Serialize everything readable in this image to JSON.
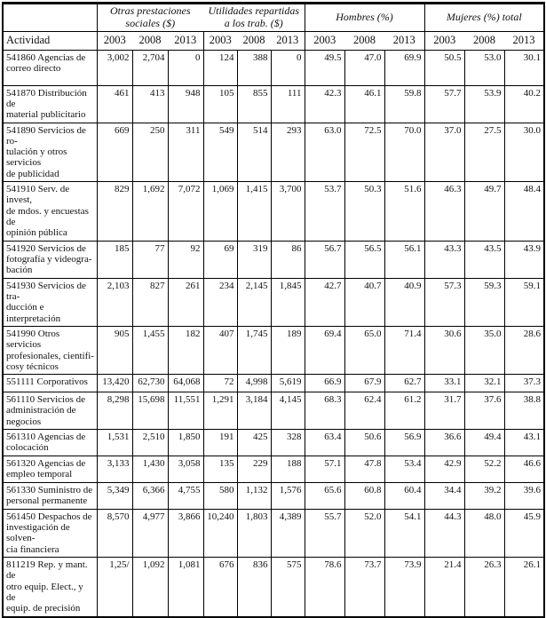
{
  "page": {
    "background_color": "#ffffff",
    "border_color": "#000000",
    "text_color": "#111111"
  },
  "table": {
    "activity_header": "Actividad",
    "column_groups": [
      {
        "label": "Otras prestaciones\nsociales ($)",
        "years": [
          "2003",
          "2008",
          "2013"
        ]
      },
      {
        "label": "Utilidades repartidas\na los trab. ($)",
        "years": [
          "2003",
          "2008",
          "2013"
        ]
      },
      {
        "label": "Hombres (%)",
        "years": [
          "2003",
          "2008",
          "2013"
        ]
      },
      {
        "label": "Mujeres (%) total",
        "years": [
          "2003",
          "2008",
          "2013"
        ]
      }
    ],
    "rows": [
      {
        "activity": "541860 Agencias de\ncorreo directo",
        "values": [
          "3,002",
          "2,704",
          "0",
          "124",
          "388",
          "0",
          "49.5",
          "47.0",
          "69.9",
          "50.5",
          "53.0",
          "30.1"
        ]
      },
      {
        "activity": "541870 Distribución de\nmaterial publicitario",
        "values": [
          "461",
          "413",
          "948",
          "105",
          "855",
          "111",
          "42.3",
          "46.1",
          "59.8",
          "57.7",
          "53.9",
          "40.2"
        ]
      },
      {
        "activity": "541890 Servicios de ro-\ntulación y otros servicios\nde publicidad",
        "values": [
          "669",
          "250",
          "311",
          "549",
          "514",
          "293",
          "63.0",
          "72.5",
          "70.0",
          "37.0",
          "27.5",
          "30.0"
        ]
      },
      {
        "activity": "541910 Serv. de invest,\nde mdos. y encuestas de\nopinión pública",
        "values": [
          "829",
          "1,692",
          "7,072",
          "1,069",
          "1,415",
          "3,700",
          "53.7",
          "50.3",
          "51.6",
          "46.3",
          "49.7",
          "48.4"
        ]
      },
      {
        "activity": "541920 Servicios de\nfotografía y videogra-\nbación",
        "values": [
          "185",
          "77",
          "92",
          "69",
          "319",
          "86",
          "56.7",
          "56.5",
          "56.1",
          "43.3",
          "43.5",
          "43.9"
        ]
      },
      {
        "activity": "541930 Servicios de tra-\nducción e interpretación",
        "values": [
          "2,103",
          "827",
          "261",
          "234",
          "2,145",
          "1,845",
          "42.7",
          "40.7",
          "40.9",
          "57.3",
          "59.3",
          "59.1"
        ]
      },
      {
        "activity": "541990 Otros servicios\nprofesionales, científi-\ncosy técnicos",
        "values": [
          "905",
          "1,455",
          "182",
          "407",
          "1,745",
          "189",
          "69.4",
          "65.0",
          "71.4",
          "30.6",
          "35.0",
          "28.6"
        ]
      },
      {
        "activity": "551111 Corporativos",
        "values": [
          "13,420",
          "62,730",
          "64,068",
          "72",
          "4,998",
          "5,619",
          "66.9",
          "67.9",
          "62.7",
          "33.1",
          "32.1",
          "37.3"
        ]
      },
      {
        "activity": "561110 Servicios de\nadministración de\nnegocios",
        "values": [
          "8,298",
          "15,698",
          "11,551",
          "1,291",
          "3,184",
          "4,145",
          "68.3",
          "62.4",
          "61.2",
          "31.7",
          "37.6",
          "38.8"
        ]
      },
      {
        "activity": "561310 Agencias de\ncolocación",
        "values": [
          "1,531",
          "2,510",
          "1,850",
          "191",
          "425",
          "328",
          "63.4",
          "50.6",
          "56.9",
          "36.6",
          "49.4",
          "43.1"
        ]
      },
      {
        "activity": "561320 Agencias de\nempleo temporal",
        "values": [
          "3,133",
          "1,430",
          "3,058",
          "135",
          "229",
          "188",
          "57.1",
          "47.8",
          "53.4",
          "42.9",
          "52.2",
          "46.6"
        ]
      },
      {
        "activity": "561330 Suministro de\npersonal permanente",
        "values": [
          "5,349",
          "6,366",
          "4,755",
          "580",
          "1,132",
          "1,576",
          "65.6",
          "60.8",
          "60.4",
          "34.4",
          "39.2",
          "39.6"
        ]
      },
      {
        "activity": "561450 Despachos de\ninvestigación de solven-\ncia financiera",
        "values": [
          "8,570",
          "4,977",
          "3,866",
          "10,240",
          "1,803",
          "4,389",
          "55.7",
          "52.0",
          "54.1",
          "44.3",
          "48.0",
          "45.9"
        ]
      },
      {
        "activity": "811219 Rep. y mant. de\notro equip. Elect., y de\nequip. de precisión",
        "values": [
          "1,25/",
          "1,092",
          "1,081",
          "676",
          "836",
          "575",
          "78.6",
          "73.7",
          "73.9",
          "21.4",
          "26.3",
          "26.1"
        ]
      }
    ]
  }
}
